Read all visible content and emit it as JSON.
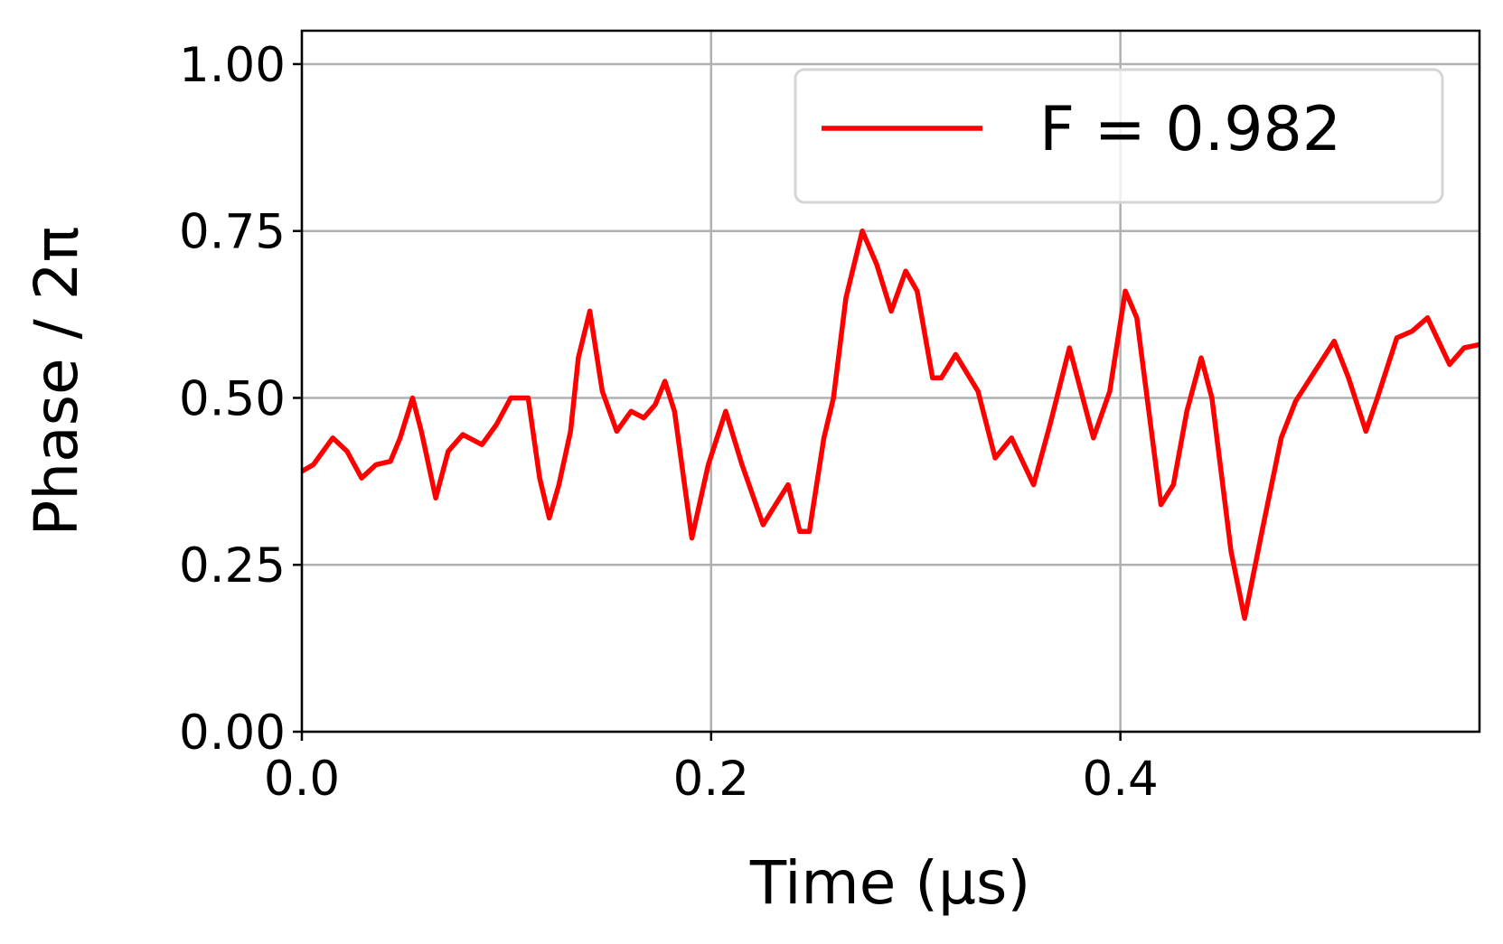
{
  "chart_data": {
    "type": "line",
    "xlabel": "Time (μs)",
    "ylabel": "Phase / 2π",
    "x": [
      0,
      0.0056,
      0.0151,
      0.0221,
      0.0292,
      0.0362,
      0.0433,
      0.048,
      0.0541,
      0.0584,
      0.0654,
      0.0715,
      0.0786,
      0.088,
      0.0951,
      0.1021,
      0.1106,
      0.1162,
      0.1209,
      0.1256,
      0.1313,
      0.1351,
      0.1407,
      0.1468,
      0.1539,
      0.1609,
      0.1671,
      0.1727,
      0.1774,
      0.1821,
      0.1906,
      0.1986,
      0.2071,
      0.2151,
      0.2254,
      0.2315,
      0.2376,
      0.2433,
      0.248,
      0.2551,
      0.2598,
      0.2659,
      0.2739,
      0.2809,
      0.288,
      0.2951,
      0.3007,
      0.3082,
      0.3125,
      0.3195,
      0.3304,
      0.3388,
      0.3468,
      0.3576,
      0.3656,
      0.3751,
      0.3868,
      0.3948,
      0.4024,
      0.408,
      0.4198,
      0.4259,
      0.4325,
      0.4395,
      0.4447,
      0.4541,
      0.4607,
      0.4692,
      0.4786,
      0.4856,
      0.5045,
      0.5115,
      0.52,
      0.5256,
      0.5351,
      0.5426,
      0.5501,
      0.5609,
      0.568,
      0.5755
    ],
    "series": [
      {
        "name": "F = 0.982",
        "color": "#ff0000",
        "values": [
          0.39,
          0.4,
          0.44,
          0.42,
          0.38,
          0.4,
          0.405,
          0.44,
          0.5,
          0.45,
          0.35,
          0.42,
          0.445,
          0.43,
          0.46,
          0.5,
          0.5,
          0.38,
          0.32,
          0.37,
          0.45,
          0.56,
          0.63,
          0.51,
          0.45,
          0.48,
          0.47,
          0.49,
          0.525,
          0.48,
          0.29,
          0.4,
          0.48,
          0.4,
          0.31,
          0.34,
          0.37,
          0.3,
          0.3,
          0.44,
          0.5,
          0.65,
          0.75,
          0.7,
          0.63,
          0.69,
          0.66,
          0.53,
          0.53,
          0.565,
          0.51,
          0.41,
          0.44,
          0.37,
          0.46,
          0.575,
          0.44,
          0.51,
          0.66,
          0.62,
          0.34,
          0.37,
          0.48,
          0.56,
          0.5,
          0.27,
          0.17,
          0.3,
          0.44,
          0.495,
          0.585,
          0.53,
          0.45,
          0.5,
          0.59,
          0.6,
          0.62,
          0.55,
          0.575,
          0.58
        ]
      }
    ],
    "xlim": [
      0,
      0.5755
    ],
    "ylim": [
      0,
      1.05
    ],
    "xticks": [
      {
        "value": 0,
        "label": "0.0"
      },
      {
        "value": 0.2,
        "label": "0.2"
      },
      {
        "value": 0.4,
        "label": "0.4"
      }
    ],
    "yticks": [
      {
        "value": 0,
        "label": "0.00"
      },
      {
        "value": 0.25,
        "label": "0.25"
      },
      {
        "value": 0.5,
        "label": "0.50"
      },
      {
        "value": 0.75,
        "label": "0.75"
      },
      {
        "value": 1,
        "label": "1.00"
      }
    ],
    "grid": true,
    "legend": "upper right"
  }
}
